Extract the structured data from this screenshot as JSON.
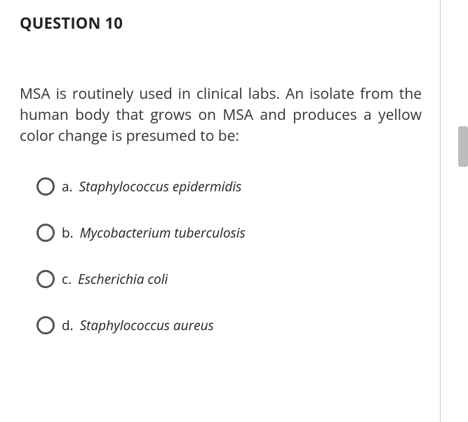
{
  "question": {
    "title": "QUESTION 10",
    "prompt": "MSA is routinely used in clinical labs. An isolate from the human body that grows on MSA and produces a yellow color change is presumed to be:",
    "options": [
      {
        "letter": "a.",
        "name": "Staphylococcus epidermidis"
      },
      {
        "letter": "b.",
        "name": "Mycobacterium tuberculosis"
      },
      {
        "letter": "c.",
        "name": "Escherichia coli"
      },
      {
        "letter": "d.",
        "name": "Staphylococcus aureus"
      }
    ]
  }
}
